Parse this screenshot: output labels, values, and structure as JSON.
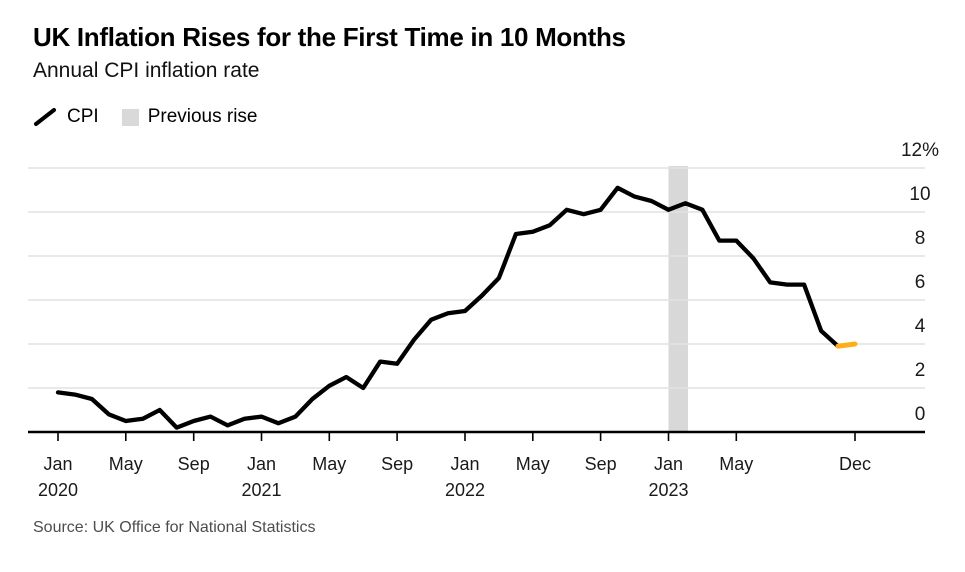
{
  "header": {
    "title": "UK Inflation Rises for the First Time in 10 Months",
    "subtitle": "Annual CPI inflation rate"
  },
  "legend": {
    "items": [
      {
        "label": "CPI",
        "swatch": "line",
        "color": "#000000"
      },
      {
        "label": "Previous rise",
        "swatch": "box",
        "color": "#d9d9d9"
      }
    ]
  },
  "footer": {
    "source": "Source: UK Office for National Statistics"
  },
  "chart_data": {
    "type": "line",
    "title": "UK Inflation Rises for the First Time in 10 Months",
    "subtitle": "Annual CPI inflation rate",
    "unit": "%",
    "grid": "horizontal",
    "legend_position": "top-left",
    "ylim": [
      0,
      12
    ],
    "x": [
      "Jan 2020",
      "Feb 2020",
      "Mar 2020",
      "Apr 2020",
      "May 2020",
      "Jun 2020",
      "Jul 2020",
      "Aug 2020",
      "Sep 2020",
      "Oct 2020",
      "Nov 2020",
      "Dec 2020",
      "Jan 2021",
      "Feb 2021",
      "Mar 2021",
      "Apr 2021",
      "May 2021",
      "Jun 2021",
      "Jul 2021",
      "Aug 2021",
      "Sep 2021",
      "Oct 2021",
      "Nov 2021",
      "Dec 2021",
      "Jan 2022",
      "Feb 2022",
      "Mar 2022",
      "Apr 2022",
      "May 2022",
      "Jun 2022",
      "Jul 2022",
      "Aug 2022",
      "Sep 2022",
      "Oct 2022",
      "Nov 2022",
      "Dec 2022",
      "Jan 2023",
      "Feb 2023",
      "Mar 2023",
      "Apr 2023",
      "May 2023",
      "Jun 2023",
      "Jul 2023",
      "Aug 2023",
      "Sep 2023",
      "Oct 2023",
      "Nov 2023",
      "Dec 2023"
    ],
    "series": [
      {
        "name": "CPI",
        "color": "#000000",
        "values": [
          1.8,
          1.7,
          1.5,
          0.8,
          0.5,
          0.6,
          1.0,
          0.2,
          0.5,
          0.7,
          0.3,
          0.6,
          0.7,
          0.4,
          0.7,
          1.5,
          2.1,
          2.5,
          2.0,
          3.2,
          3.1,
          4.2,
          5.1,
          5.4,
          5.5,
          6.2,
          7.0,
          9.0,
          9.1,
          9.4,
          10.1,
          9.9,
          10.1,
          11.1,
          10.7,
          10.5,
          10.1,
          10.4,
          10.1,
          8.7,
          8.7,
          7.9,
          6.8,
          6.7,
          6.7,
          4.6,
          3.9,
          4.0
        ]
      }
    ],
    "yticks": [
      {
        "v": 0,
        "label": "0"
      },
      {
        "v": 2,
        "label": "2"
      },
      {
        "v": 4,
        "label": "4"
      },
      {
        "v": 6,
        "label": "6"
      },
      {
        "v": 8,
        "label": "8"
      },
      {
        "v": 10,
        "label": "10"
      },
      {
        "v": 12,
        "label": "12%"
      }
    ],
    "xticks": [
      {
        "m": 0,
        "label": "Jan",
        "year": "2020"
      },
      {
        "m": 4,
        "label": "May"
      },
      {
        "m": 8,
        "label": "Sep"
      },
      {
        "m": 12,
        "label": "Jan",
        "year": "2021"
      },
      {
        "m": 16,
        "label": "May"
      },
      {
        "m": 20,
        "label": "Sep"
      },
      {
        "m": 24,
        "label": "Jan",
        "year": "2022"
      },
      {
        "m": 28,
        "label": "May"
      },
      {
        "m": 32,
        "label": "Sep"
      },
      {
        "m": 36,
        "label": "Jan",
        "year": "2023"
      },
      {
        "m": 40,
        "label": "May"
      },
      {
        "m": 47,
        "label": "Dec"
      }
    ],
    "highlight_segment": {
      "note": "latest uptick, Nov 2023 to Dec 2023",
      "from_index": 46,
      "to_index": 47,
      "color": "#fcaf17"
    },
    "previous_rise_band": {
      "note": "Previous rise, Jan 2023 to Feb 2023",
      "from_index": 36,
      "to_index": 37,
      "color": "#d8d8d8"
    },
    "colors": {
      "line": "#000000",
      "highlight": "#fcaf17",
      "band": "#d8d8d8",
      "grid": "#e2e2e2",
      "axis": "#000000"
    }
  }
}
